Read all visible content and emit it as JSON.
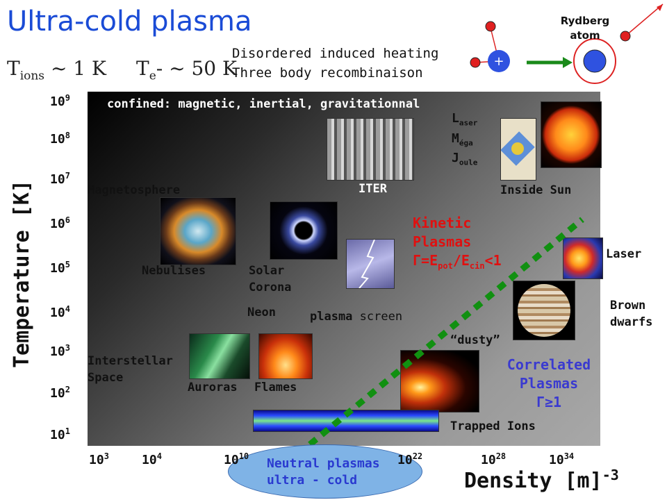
{
  "title": "Ultra-cold plasma",
  "temps": {
    "ions_T": "T",
    "ions_sub": "ions",
    "ions_val": " ~ 1 K",
    "e_T": "T",
    "e_sub": "e",
    "e_val": "- ~ 50 K"
  },
  "heating": [
    "Disordered induced heating",
    "Three body recombinaison"
  ],
  "rydberg": {
    "label1": "Rydberg",
    "label2": "atom",
    "plus": "+",
    "minus": "−"
  },
  "confined": "confined: magnetic, inertial, gravitationnal",
  "y_ticks": [
    {
      "base": "10",
      "exp": "9"
    },
    {
      "base": "10",
      "exp": "8"
    },
    {
      "base": "10",
      "exp": "7"
    },
    {
      "base": "10",
      "exp": "6"
    },
    {
      "base": "10",
      "exp": "5"
    },
    {
      "base": "10",
      "exp": "4"
    },
    {
      "base": "10",
      "exp": "3"
    },
    {
      "base": "10",
      "exp": "2"
    },
    {
      "base": "10",
      "exp": "1"
    }
  ],
  "x_ticks": [
    {
      "base": "10",
      "exp": "3"
    },
    {
      "base": "10",
      "exp": "4"
    },
    {
      "base": "10",
      "exp": "10"
    },
    {
      "base": "10",
      "exp": "22"
    },
    {
      "base": "10",
      "exp": "28"
    },
    {
      "base": "10",
      "exp": "34"
    }
  ],
  "ylabel": "Temperature [K]",
  "xlabel": "Density [m]",
  "xlabel_exp": "-3",
  "labels": {
    "iter": "ITER",
    "laser_mega_joule": [
      [
        "L",
        "aser"
      ],
      [
        "M",
        "éga"
      ],
      [
        "J",
        "oule"
      ]
    ],
    "inside_sun": "Inside Sun",
    "magnetosphere": "Magnetosphere",
    "nebulises": "Nebulises",
    "solar_corona_1": "Solar",
    "solar_corona_2": "Corona",
    "neon": "Neon",
    "plasma_screen_1": "plasma",
    "plasma_screen_2": "screen",
    "kinetic_1": "Kinetic",
    "kinetic_2": "Plasmas",
    "kinetic_gamma": "Γ=E",
    "kinetic_sub1": "pot",
    "kinetic_mid": "/E",
    "kinetic_sub2": "cin",
    "kinetic_end": "<1",
    "laser": "Laser",
    "brown_1": "Brown",
    "brown_2": "dwarfs",
    "dusty": "“dusty”",
    "interstellar_1": "Interstellar",
    "interstellar_2": "Space",
    "auroras": "Auroras",
    "flames": "Flames",
    "correlated_1": "Correlated",
    "correlated_2": "Plasmas",
    "correlated_gamma": "Γ≥1",
    "trapped": "Trapped Ions",
    "neutral_1": "Neutral plasmas",
    "neutral_2": "ultra - cold"
  },
  "colors": {
    "title": "#1a4bd6",
    "kinetic": "#e01010",
    "correlated": "#3a3ad0",
    "diagonal": "#119011",
    "ellipse": "#7fb3e6"
  },
  "icons": [
    "iter-photo",
    "sun-photo",
    "tarot-card-photo",
    "nebula-photo",
    "eclipse-photo",
    "lightning-photo",
    "laser-photo",
    "jupiter-photo",
    "aurora-photo",
    "flame-photo",
    "comet-photo",
    "trapped-ions-photo"
  ]
}
